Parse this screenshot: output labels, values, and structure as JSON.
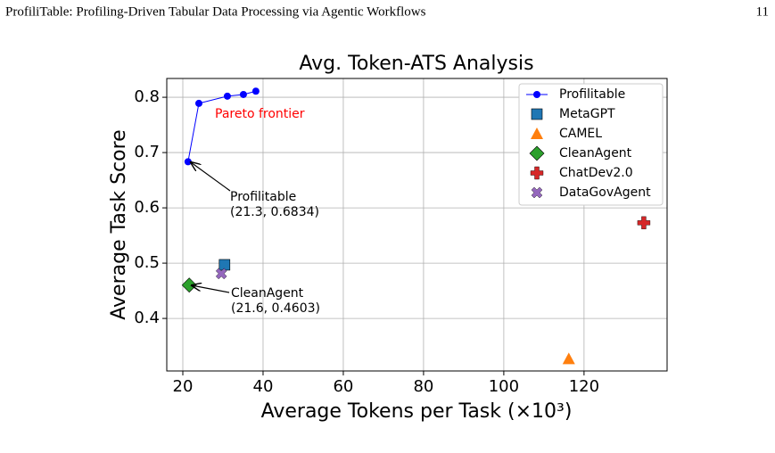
{
  "header": {
    "title": "ProfiliTable: Profiling-Driven Tabular Data Processing via Agentic Workflows",
    "page": "11"
  },
  "chart_data": {
    "type": "scatter",
    "title": "Avg. Token-ATS Analysis",
    "x_label": "Average Tokens per Task (×10³)",
    "y_label": "Average Task Score",
    "xlim": [
      16,
      140.7
    ],
    "ylim": [
      0.305,
      0.834
    ],
    "xticks": [
      20,
      40,
      60,
      80,
      100,
      120
    ],
    "yticks": [
      0.4,
      0.5,
      0.6,
      0.7,
      0.8
    ],
    "grid": true,
    "legend": "upper right",
    "series": [
      {
        "name": "Profilitable",
        "color": "#0000ff",
        "marker": "circle",
        "line": true,
        "x": [
          21.3,
          24,
          31.1,
          35.1,
          38.2
        ],
        "values": [
          0.6834,
          0.789,
          0.802,
          0.805,
          0.811
        ]
      },
      {
        "name": "MetaGPT",
        "color": "#1f77b4",
        "marker": "square",
        "x": [
          30.4
        ],
        "values": [
          0.497
        ]
      },
      {
        "name": "CAMEL",
        "color": "#ff7f0e",
        "marker": "triangle",
        "x": [
          116.2
        ],
        "values": [
          0.327
        ]
      },
      {
        "name": "CleanAgent",
        "color": "#2ca02c",
        "marker": "diamond",
        "x": [
          21.6
        ],
        "values": [
          0.4603
        ]
      },
      {
        "name": "ChatDev2.0",
        "color": "#d62728",
        "marker": "plus",
        "x": [
          134.9
        ],
        "values": [
          0.573
        ]
      },
      {
        "name": "DataGovAgent",
        "color": "#9467bd",
        "marker": "x",
        "x": [
          29.6
        ],
        "values": [
          0.481
        ]
      }
    ],
    "annotations": [
      {
        "text": [
          "Pareto frontier"
        ],
        "color": "#ff0000"
      },
      {
        "text": [
          "Profilitable",
          "(21.3, 0.6834)"
        ],
        "color": "#000000"
      },
      {
        "text": [
          "CleanAgent",
          "(21.6, 0.4603)"
        ],
        "color": "#000000"
      }
    ]
  }
}
